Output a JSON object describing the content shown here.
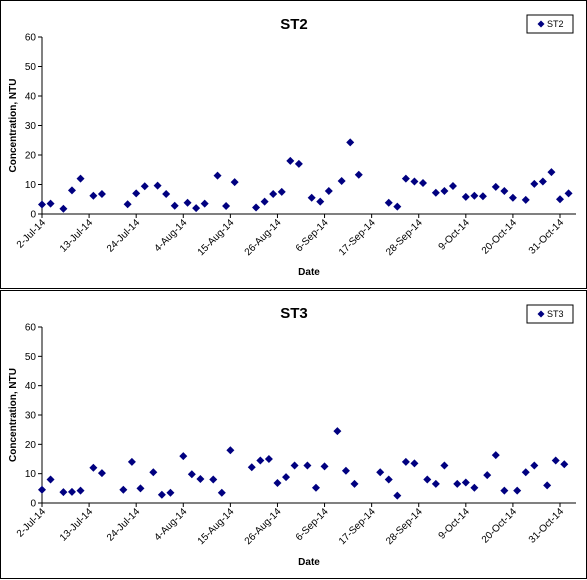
{
  "chart_data": [
    {
      "type": "scatter",
      "title": "ST2",
      "xlabel": "Date",
      "ylabel": "Concentration, NTU",
      "ylim": [
        0,
        60
      ],
      "yticks": [
        0,
        10,
        20,
        30,
        40,
        50,
        60
      ],
      "xlim": [
        "2014-07-02",
        "2014-10-31"
      ],
      "xtick_labels": [
        "2-Jul-14",
        "13-Jul-14",
        "24-Jul-14",
        "4-Aug-14",
        "15-Aug-14",
        "26-Aug-14",
        "6-Sep-14",
        "17-Sep-14",
        "28-Sep-14",
        "9-Oct-14",
        "20-Oct-14",
        "31-Oct-14"
      ],
      "xtick_dates": [
        "2014-07-02",
        "2014-07-13",
        "2014-07-24",
        "2014-08-04",
        "2014-08-15",
        "2014-08-26",
        "2014-09-06",
        "2014-09-17",
        "2014-09-28",
        "2014-10-09",
        "2014-10-20",
        "2014-10-31"
      ],
      "grid": false,
      "legend_position": "top-right",
      "marker": "diamond",
      "series": [
        {
          "name": "ST2",
          "color": "#000080",
          "points": [
            {
              "x": "2014-07-02",
              "y": 3.2
            },
            {
              "x": "2014-07-04",
              "y": 3.5
            },
            {
              "x": "2014-07-07",
              "y": 1.8
            },
            {
              "x": "2014-07-09",
              "y": 8.0
            },
            {
              "x": "2014-07-11",
              "y": 12.0
            },
            {
              "x": "2014-07-14",
              "y": 6.2
            },
            {
              "x": "2014-07-16",
              "y": 6.8
            },
            {
              "x": "2014-07-22",
              "y": 3.3
            },
            {
              "x": "2014-07-24",
              "y": 7.0
            },
            {
              "x": "2014-07-26",
              "y": 9.4
            },
            {
              "x": "2014-07-29",
              "y": 9.6
            },
            {
              "x": "2014-07-31",
              "y": 6.8
            },
            {
              "x": "2014-08-02",
              "y": 2.8
            },
            {
              "x": "2014-08-05",
              "y": 3.8
            },
            {
              "x": "2014-08-07",
              "y": 2.0
            },
            {
              "x": "2014-08-09",
              "y": 3.5
            },
            {
              "x": "2014-08-12",
              "y": 13.0
            },
            {
              "x": "2014-08-14",
              "y": 2.7
            },
            {
              "x": "2014-08-16",
              "y": 10.8
            },
            {
              "x": "2014-08-21",
              "y": 2.2
            },
            {
              "x": "2014-08-23",
              "y": 4.2
            },
            {
              "x": "2014-08-25",
              "y": 6.8
            },
            {
              "x": "2014-08-27",
              "y": 7.5
            },
            {
              "x": "2014-08-29",
              "y": 18.0
            },
            {
              "x": "2014-08-31",
              "y": 17.0
            },
            {
              "x": "2014-09-03",
              "y": 5.5
            },
            {
              "x": "2014-09-05",
              "y": 4.2
            },
            {
              "x": "2014-09-07",
              "y": 7.8
            },
            {
              "x": "2014-09-10",
              "y": 11.2
            },
            {
              "x": "2014-09-12",
              "y": 24.3
            },
            {
              "x": "2014-09-14",
              "y": 13.3
            },
            {
              "x": "2014-09-21",
              "y": 3.8
            },
            {
              "x": "2014-09-23",
              "y": 2.5
            },
            {
              "x": "2014-09-25",
              "y": 12.0
            },
            {
              "x": "2014-09-27",
              "y": 11.0
            },
            {
              "x": "2014-09-29",
              "y": 10.5
            },
            {
              "x": "2014-10-02",
              "y": 7.2
            },
            {
              "x": "2014-10-04",
              "y": 7.8
            },
            {
              "x": "2014-10-06",
              "y": 9.5
            },
            {
              "x": "2014-10-09",
              "y": 5.8
            },
            {
              "x": "2014-10-11",
              "y": 6.2
            },
            {
              "x": "2014-10-13",
              "y": 6.0
            },
            {
              "x": "2014-10-16",
              "y": 9.2
            },
            {
              "x": "2014-10-18",
              "y": 7.8
            },
            {
              "x": "2014-10-20",
              "y": 5.5
            },
            {
              "x": "2014-10-23",
              "y": 4.8
            },
            {
              "x": "2014-10-25",
              "y": 10.2
            },
            {
              "x": "2014-10-27",
              "y": 11.0
            },
            {
              "x": "2014-10-29",
              "y": 14.2
            },
            {
              "x": "2014-10-31",
              "y": 5.0
            },
            {
              "x": "2014-11-02",
              "y": 7.0
            }
          ]
        }
      ]
    },
    {
      "type": "scatter",
      "title": "ST3",
      "xlabel": "Date",
      "ylabel": "Concentration, NTU",
      "ylim": [
        0,
        60
      ],
      "yticks": [
        0,
        10,
        20,
        30,
        40,
        50,
        60
      ],
      "xlim": [
        "2014-07-02",
        "2014-10-31"
      ],
      "xtick_labels": [
        "2-Jul-14",
        "13-Jul-14",
        "24-Jul-14",
        "4-Aug-14",
        "15-Aug-14",
        "26-Aug-14",
        "6-Sep-14",
        "17-Sep-14",
        "28-Sep-14",
        "9-Oct-14",
        "20-Oct-14",
        "31-Oct-14"
      ],
      "xtick_dates": [
        "2014-07-02",
        "2014-07-13",
        "2014-07-24",
        "2014-08-04",
        "2014-08-15",
        "2014-08-26",
        "2014-09-06",
        "2014-09-17",
        "2014-09-28",
        "2014-10-09",
        "2014-10-20",
        "2014-10-31"
      ],
      "grid": false,
      "legend_position": "top-right",
      "marker": "diamond",
      "series": [
        {
          "name": "ST3",
          "color": "#000080",
          "points": [
            {
              "x": "2014-07-02",
              "y": 4.5
            },
            {
              "x": "2014-07-04",
              "y": 8.0
            },
            {
              "x": "2014-07-07",
              "y": 3.7
            },
            {
              "x": "2014-07-09",
              "y": 3.8
            },
            {
              "x": "2014-07-11",
              "y": 4.2
            },
            {
              "x": "2014-07-14",
              "y": 12.0
            },
            {
              "x": "2014-07-16",
              "y": 10.2
            },
            {
              "x": "2014-07-21",
              "y": 4.5
            },
            {
              "x": "2014-07-23",
              "y": 14.0
            },
            {
              "x": "2014-07-25",
              "y": 5.0
            },
            {
              "x": "2014-07-28",
              "y": 10.5
            },
            {
              "x": "2014-07-30",
              "y": 2.8
            },
            {
              "x": "2014-08-01",
              "y": 3.5
            },
            {
              "x": "2014-08-04",
              "y": 16.0
            },
            {
              "x": "2014-08-06",
              "y": 9.8
            },
            {
              "x": "2014-08-08",
              "y": 8.2
            },
            {
              "x": "2014-08-11",
              "y": 8.0
            },
            {
              "x": "2014-08-13",
              "y": 3.5
            },
            {
              "x": "2014-08-15",
              "y": 18.0
            },
            {
              "x": "2014-08-20",
              "y": 12.2
            },
            {
              "x": "2014-08-22",
              "y": 14.5
            },
            {
              "x": "2014-08-24",
              "y": 15.0
            },
            {
              "x": "2014-08-26",
              "y": 6.8
            },
            {
              "x": "2014-08-28",
              "y": 8.8
            },
            {
              "x": "2014-08-30",
              "y": 12.8
            },
            {
              "x": "2014-09-02",
              "y": 12.8
            },
            {
              "x": "2014-09-04",
              "y": 5.2
            },
            {
              "x": "2014-09-06",
              "y": 12.5
            },
            {
              "x": "2014-09-09",
              "y": 24.5
            },
            {
              "x": "2014-09-11",
              "y": 11.0
            },
            {
              "x": "2014-09-13",
              "y": 6.5
            },
            {
              "x": "2014-09-19",
              "y": 10.5
            },
            {
              "x": "2014-09-21",
              "y": 8.0
            },
            {
              "x": "2014-09-23",
              "y": 2.5
            },
            {
              "x": "2014-09-25",
              "y": 14.0
            },
            {
              "x": "2014-09-27",
              "y": 13.5
            },
            {
              "x": "2014-09-30",
              "y": 8.0
            },
            {
              "x": "2014-10-02",
              "y": 6.5
            },
            {
              "x": "2014-10-04",
              "y": 12.8
            },
            {
              "x": "2014-10-07",
              "y": 6.5
            },
            {
              "x": "2014-10-09",
              "y": 7.0
            },
            {
              "x": "2014-10-11",
              "y": 5.2
            },
            {
              "x": "2014-10-14",
              "y": 9.5
            },
            {
              "x": "2014-10-16",
              "y": 16.3
            },
            {
              "x": "2014-10-18",
              "y": 4.2
            },
            {
              "x": "2014-10-21",
              "y": 4.2
            },
            {
              "x": "2014-10-23",
              "y": 10.5
            },
            {
              "x": "2014-10-25",
              "y": 12.8
            },
            {
              "x": "2014-10-28",
              "y": 6.0
            },
            {
              "x": "2014-10-30",
              "y": 14.5
            },
            {
              "x": "2014-11-01",
              "y": 13.2
            }
          ]
        }
      ]
    }
  ]
}
